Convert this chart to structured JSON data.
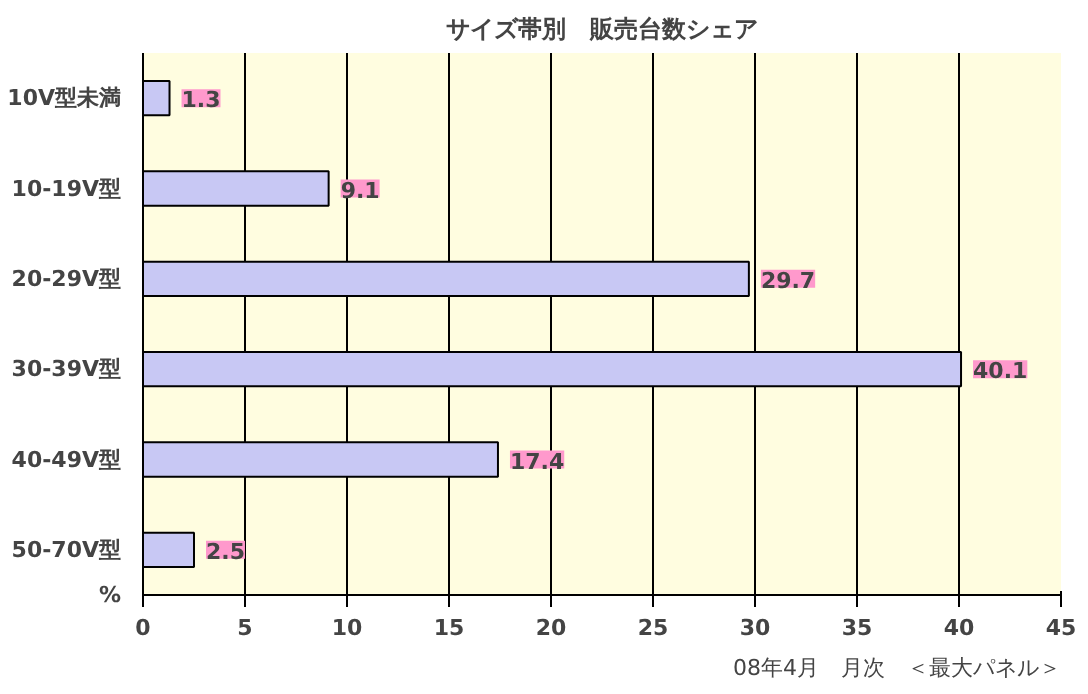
{
  "chart_data": {
    "type": "bar",
    "orientation": "horizontal",
    "title": "サイズ帯別　販売台数シェア",
    "xlabel": "%",
    "categories": [
      "10V型未満",
      "10-19V型",
      "20-29V型",
      "30-39V型",
      "40-49V型",
      "50-70V型"
    ],
    "values": [
      1.3,
      9.1,
      29.7,
      40.1,
      17.4,
      2.5
    ],
    "color": "#c8c8f4",
    "data_labels": true,
    "xlim": [
      0,
      45
    ],
    "xticks": [
      0,
      5,
      10,
      15,
      20,
      25,
      30,
      35,
      40,
      45
    ],
    "grid": "x",
    "annotations": [
      "08年4月　月次　＜最大パネル＞"
    ]
  }
}
